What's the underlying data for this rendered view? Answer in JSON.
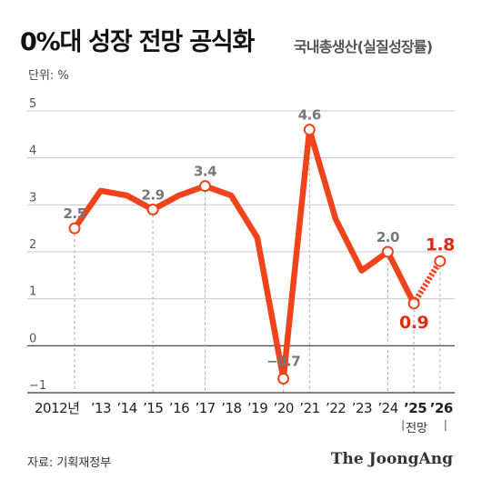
{
  "title": "0%대 성장 전망 공식화",
  "subtitle": "국내총생산(실질성장률)",
  "unit": "단위: %",
  "source": "자료: 기획재정부",
  "brand": "The JoongAng",
  "colors": {
    "line": "#f0431b",
    "highlight": "#e02a12",
    "label": "#777777",
    "axis": "#444444",
    "grid": "#c9c9c9"
  },
  "chart_data": {
    "type": "line",
    "ylim": [
      -1,
      5
    ],
    "yticks": [
      "5",
      "4",
      "3",
      "2",
      "1",
      "0",
      "−1"
    ],
    "categories": [
      "2012년",
      "’13",
      "’14",
      "’15",
      "’16",
      "’17",
      "’18",
      "’19",
      "’20",
      "’21",
      "’22",
      "’23",
      "’24",
      "’25",
      "’26"
    ],
    "forecast_note": "전망",
    "values": [
      2.5,
      3.3,
      3.2,
      2.9,
      3.2,
      3.4,
      3.2,
      2.3,
      -0.7,
      4.6,
      2.7,
      1.6,
      2.0,
      0.9,
      1.8
    ],
    "labeled_points": [
      {
        "index": 0,
        "label": "2.5"
      },
      {
        "index": 3,
        "label": "2.9"
      },
      {
        "index": 5,
        "label": "3.4"
      },
      {
        "index": 8,
        "label": "−0.7"
      },
      {
        "index": 9,
        "label": "4.6"
      },
      {
        "index": 12,
        "label": "2.0"
      },
      {
        "index": 13,
        "label": "0.9",
        "highlight": true
      },
      {
        "index": 14,
        "label": "1.8",
        "highlight": true
      }
    ],
    "forecast_from_index": 13
  }
}
